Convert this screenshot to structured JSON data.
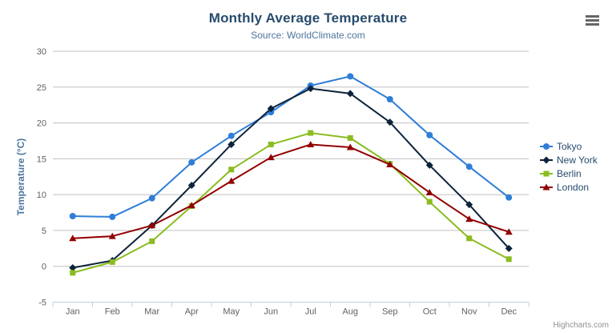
{
  "chart": {
    "title": "Monthly Average Temperature",
    "subtitle": "Source: WorldClimate.com",
    "credits": "Highcharts.com"
  },
  "chart_data": {
    "type": "line",
    "title": "Monthly Average Temperature",
    "subtitle": "Source: WorldClimate.com",
    "categories": [
      "Jan",
      "Feb",
      "Mar",
      "Apr",
      "May",
      "Jun",
      "Jul",
      "Aug",
      "Sep",
      "Oct",
      "Nov",
      "Dec"
    ],
    "xlabel": "",
    "ylabel": "Temperature (°C)",
    "ylim": [
      -5,
      30
    ],
    "ytick_step": 5,
    "yticks": [
      "-5",
      "0",
      "5",
      "10",
      "15",
      "20",
      "25",
      "30"
    ],
    "grid": true,
    "legend_position": "right",
    "series": [
      {
        "name": "Tokyo",
        "color": "#2f7ed8",
        "marker": "circle",
        "values": [
          7.0,
          6.9,
          9.5,
          14.5,
          18.2,
          21.5,
          25.2,
          26.5,
          23.3,
          18.3,
          13.9,
          9.6
        ]
      },
      {
        "name": "New York",
        "color": "#0d233a",
        "marker": "diamond",
        "values": [
          -0.2,
          0.8,
          5.7,
          11.3,
          17.0,
          22.0,
          24.8,
          24.1,
          20.1,
          14.1,
          8.6,
          2.5
        ]
      },
      {
        "name": "Berlin",
        "color": "#8bbc21",
        "marker": "square",
        "values": [
          -0.9,
          0.6,
          3.5,
          8.4,
          13.5,
          17.0,
          18.6,
          17.9,
          14.3,
          9.0,
          3.9,
          1.0
        ]
      },
      {
        "name": "London",
        "color": "#910000",
        "marker": "triangle",
        "values": [
          3.9,
          4.2,
          5.7,
          8.5,
          11.9,
          15.2,
          17.0,
          16.6,
          14.2,
          10.3,
          6.6,
          4.8
        ]
      }
    ],
    "style": {
      "grid_color": "#C0C0C0",
      "axis_line_color": "#C0D0E0",
      "tick_label_color": "#606060",
      "title_color": "#274b6d",
      "subtitle_color": "#4d759e",
      "axis_title_color": "#4d759e",
      "legend_text_color": "#274b6d",
      "credits_color": "#909090",
      "menu_icon_color": "#666666"
    }
  }
}
